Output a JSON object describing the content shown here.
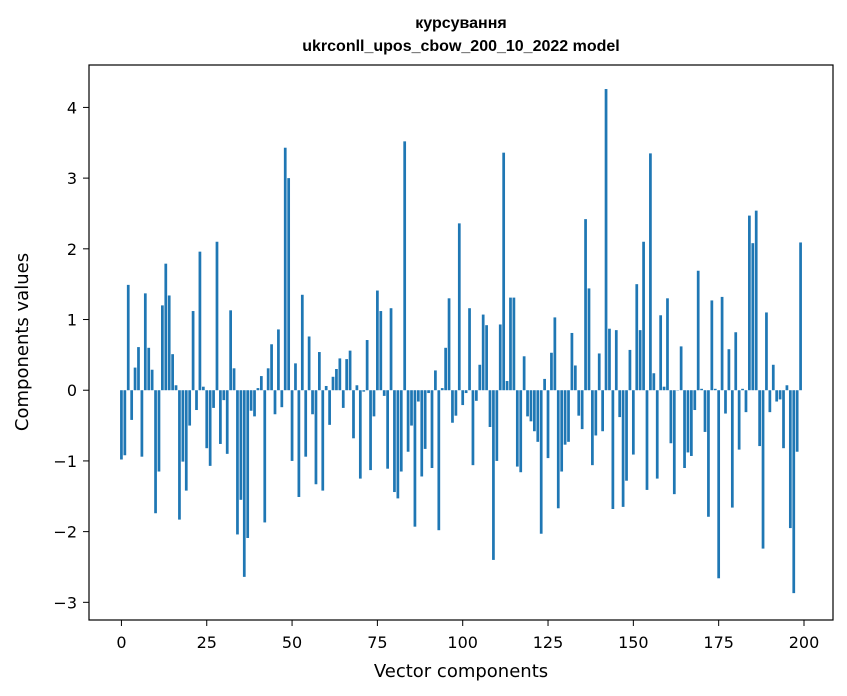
{
  "chart_data": {
    "type": "bar",
    "title": "курсування",
    "subtitle": "ukrconll_upos_cbow_200_10_2022 model",
    "xlabel": "Vector components",
    "ylabel": "Components values",
    "xlim": [
      -9.5,
      208.5
    ],
    "ylim": [
      -3.25,
      4.6
    ],
    "xticks": [
      0,
      25,
      50,
      75,
      100,
      125,
      150,
      175,
      200
    ],
    "xtick_labels": [
      "0",
      "25",
      "50",
      "75",
      "100",
      "125",
      "150",
      "175",
      "200"
    ],
    "yticks": [
      -3,
      -2,
      -1,
      0,
      1,
      2,
      3,
      4
    ],
    "ytick_labels": [
      "−3",
      "−2",
      "−1",
      "0",
      "1",
      "2",
      "3",
      "4"
    ],
    "grid": false,
    "bar_color": "#1f77b4",
    "series": [
      {
        "values": [
          -0.98,
          -0.92,
          1.49,
          -0.42,
          0.32,
          0.61,
          -0.94,
          1.37,
          0.6,
          0.29,
          -1.74,
          -1.15,
          1.2,
          1.79,
          1.34,
          0.51,
          0.07,
          -1.83,
          -1.01,
          -1.42,
          -0.5,
          1.12,
          -0.28,
          1.96,
          0.05,
          -0.82,
          -1.07,
          -0.25,
          2.1,
          -0.76,
          -0.14,
          -0.9,
          1.13,
          0.31,
          -2.04,
          -1.55,
          -2.64,
          -2.09,
          -0.29,
          -0.37,
          0.03,
          0.2,
          -1.87,
          0.31,
          0.65,
          -0.34,
          0.86,
          -0.24,
          3.43,
          3.0,
          -1.0,
          0.38,
          -1.51,
          1.35,
          -0.94,
          0.76,
          -0.34,
          -1.33,
          0.54,
          -1.42,
          0.06,
          -0.49,
          0.19,
          0.3,
          0.45,
          -0.25,
          0.44,
          0.56,
          -0.68,
          0.07,
          -1.25,
          -0.02,
          0.71,
          -1.13,
          -0.37,
          1.41,
          1.12,
          -0.08,
          -1.11,
          1.16,
          -1.44,
          -1.53,
          -1.15,
          3.52,
          -0.87,
          -0.5,
          -1.93,
          -0.16,
          -1.22,
          -0.83,
          -0.04,
          -1.1,
          0.28,
          -1.98,
          0.03,
          0.6,
          1.3,
          -0.46,
          -0.36,
          2.36,
          -0.21,
          -0.04,
          1.16,
          -1.06,
          -0.15,
          0.36,
          1.07,
          0.92,
          -0.52,
          -2.4,
          -1.0,
          0.93,
          3.36,
          0.13,
          1.31,
          1.31,
          -1.08,
          -1.16,
          0.48,
          -0.37,
          -0.44,
          -0.58,
          -0.73,
          -2.03,
          0.16,
          -0.96,
          0.53,
          1.03,
          -1.67,
          -1.15,
          -0.77,
          -0.73,
          0.81,
          0.35,
          -0.36,
          -0.55,
          2.42,
          1.44,
          -1.06,
          -0.64,
          0.52,
          -0.58,
          4.26,
          0.87,
          -1.68,
          0.85,
          -0.38,
          -1.65,
          -1.28,
          0.57,
          -0.91,
          1.5,
          0.85,
          2.1,
          -1.41,
          3.35,
          0.24,
          -1.25,
          1.06,
          0.05,
          1.3,
          -0.75,
          -1.47,
          0.0,
          0.62,
          -1.1,
          -0.88,
          -0.93,
          -0.28,
          1.69,
          0.02,
          -0.59,
          -1.79,
          1.27,
          0.02,
          -2.66,
          1.32,
          -0.33,
          0.58,
          -1.66,
          0.82,
          -0.84,
          0.02,
          -0.31,
          2.47,
          2.08,
          2.54,
          -0.79,
          -2.24,
          1.1,
          -0.31,
          0.36,
          -0.16,
          -0.13,
          -0.82,
          0.07,
          -1.95,
          -2.87,
          -0.87,
          2.09
        ]
      }
    ]
  }
}
